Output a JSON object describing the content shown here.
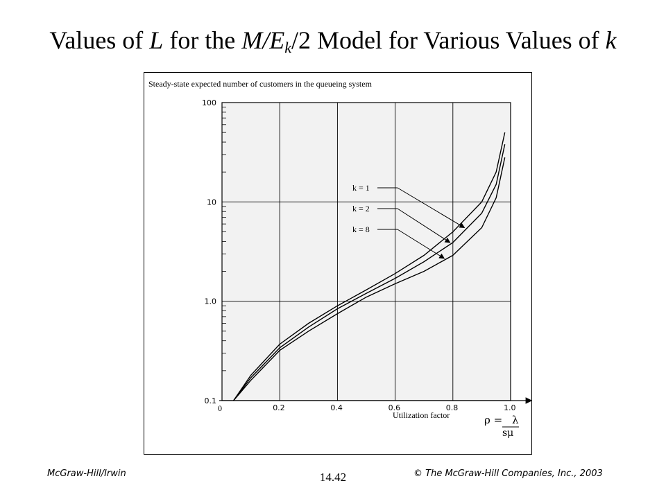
{
  "slide": {
    "title_parts": [
      "Values of ",
      "L",
      " for the ",
      "M/E",
      "k",
      "/2 Model for Various Values of ",
      "k"
    ]
  },
  "footer": {
    "left": "McGraw-Hill/Irwin",
    "center": "14.42",
    "right": "© The McGraw-Hill Companies, Inc., 2003"
  },
  "chart_data": {
    "type": "line",
    "title": "",
    "ylabel": "Steady-state expected number of customers in the queueing system",
    "xlabel": "Utilization factor",
    "xlabel_formula": {
      "lhs": "ρ =",
      "numerator": "λ",
      "denominator": "sμ"
    },
    "xlim": [
      0,
      1.0
    ],
    "ylim": [
      0.1,
      100
    ],
    "y_scale": "log",
    "grid": true,
    "x_origin_label": "0",
    "x_ticks": [
      {
        "v": 0.2,
        "label": "0.2"
      },
      {
        "v": 0.4,
        "label": "0.4"
      },
      {
        "v": 0.6,
        "label": "0.6"
      },
      {
        "v": 0.8,
        "label": "0.8"
      },
      {
        "v": 1.0,
        "label": "1.0"
      }
    ],
    "y_ticks": [
      {
        "v": 0.1,
        "label": "0.1"
      },
      {
        "v": 1.0,
        "label": "1.0"
      },
      {
        "v": 10,
        "label": "10"
      },
      {
        "v": 100,
        "label": "100"
      }
    ],
    "series": [
      {
        "name": "k = 1",
        "x": [
          0.04,
          0.1,
          0.2,
          0.3,
          0.4,
          0.5,
          0.6,
          0.7,
          0.8,
          0.9,
          0.95,
          0.98
        ],
        "y": [
          0.1,
          0.18,
          0.37,
          0.6,
          0.9,
          1.3,
          1.9,
          2.9,
          5.0,
          10,
          20,
          50
        ]
      },
      {
        "name": "k = 2",
        "x": [
          0.04,
          0.1,
          0.2,
          0.3,
          0.4,
          0.5,
          0.6,
          0.7,
          0.8,
          0.9,
          0.95,
          0.98
        ],
        "y": [
          0.1,
          0.17,
          0.34,
          0.55,
          0.84,
          1.2,
          1.7,
          2.5,
          3.9,
          7.7,
          15,
          38
        ]
      },
      {
        "name": "k = 8",
        "x": [
          0.04,
          0.1,
          0.2,
          0.3,
          0.4,
          0.5,
          0.6,
          0.7,
          0.8,
          0.9,
          0.95,
          0.98
        ],
        "y": [
          0.1,
          0.16,
          0.32,
          0.5,
          0.75,
          1.1,
          1.5,
          2.0,
          2.9,
          5.5,
          11,
          28
        ]
      }
    ],
    "annotations": [
      {
        "text": "k = 1",
        "series": "k = 1",
        "arrow_to": {
          "x": 0.84,
          "y": 5.5
        }
      },
      {
        "text": "k = 2",
        "series": "k = 2",
        "arrow_to": {
          "x": 0.79,
          "y": 3.9
        }
      },
      {
        "text": "k = 8",
        "series": "k = 8",
        "arrow_to": {
          "x": 0.77,
          "y": 2.7
        }
      }
    ]
  }
}
